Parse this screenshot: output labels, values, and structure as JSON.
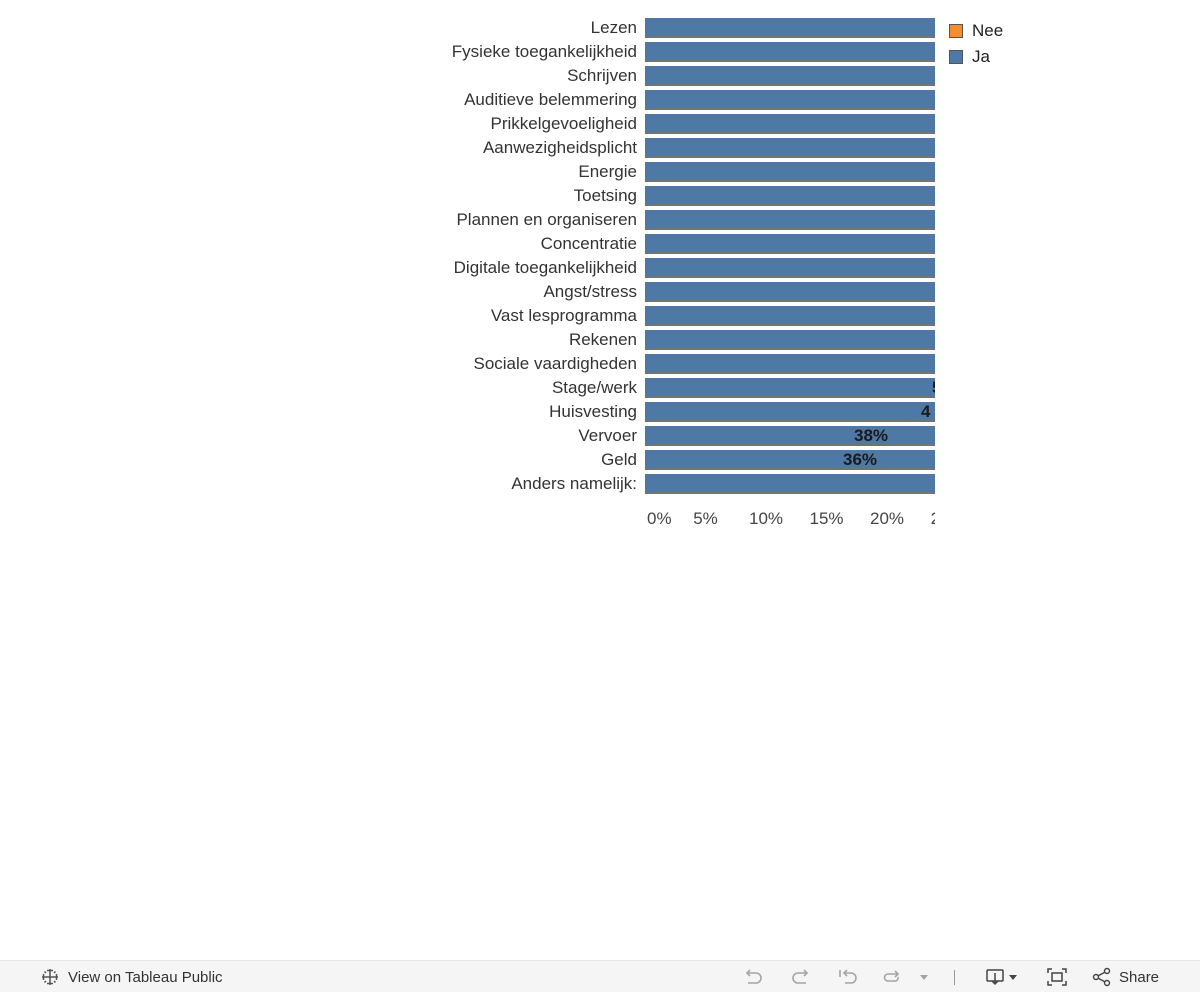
{
  "chart_data": {
    "type": "bar",
    "orientation": "horizontal",
    "stacked": true,
    "categories": [
      "Lezen",
      "Fysieke toegankelijkheid",
      "Schrijven",
      "Auditieve belemmering",
      "Prikkelgevoeligheid",
      "Aanwezigheidsplicht",
      "Energie",
      "Toetsing",
      "Plannen en organiseren",
      "Concentratie",
      "Digitale toegankelijkheid",
      "Angst/stress",
      "Vast lesprogramma",
      "Rekenen",
      "Sociale vaardigheden",
      "Stage/werk",
      "Huisvesting",
      "Vervoer",
      "Geld",
      "Anders namelijk:"
    ],
    "series": [
      {
        "name": "Ja",
        "color": "#4e79a7",
        "values": [
          null,
          null,
          null,
          null,
          null,
          null,
          null,
          null,
          null,
          null,
          null,
          null,
          null,
          null,
          null,
          null,
          null,
          null,
          null,
          null
        ]
      },
      {
        "name": "Nee",
        "color": "#f28e2b",
        "values": [
          null,
          null,
          null,
          null,
          null,
          null,
          null,
          null,
          null,
          null,
          null,
          null,
          null,
          null,
          null,
          null,
          null,
          null,
          null,
          null
        ]
      }
    ],
    "data_labels": [
      {
        "category": "Stage/werk",
        "text": "5"
      },
      {
        "category": "Huisvesting",
        "text": "4"
      },
      {
        "category": "Vervoer",
        "text": "38%"
      },
      {
        "category": "Geld",
        "text": "36%"
      }
    ],
    "x_ticks": [
      "0%",
      "5%",
      "10%",
      "15%",
      "20%",
      "2"
    ],
    "xlim": [
      0,
      24
    ],
    "legend": {
      "position": "top-right",
      "order": [
        "Nee",
        "Ja"
      ]
    },
    "grid": false
  },
  "legend_items": [
    {
      "label": "Nee",
      "color": "#f28e2b"
    },
    {
      "label": "Ja",
      "color": "#4e79a7"
    }
  ],
  "toolbar": {
    "view_label": "View on Tableau Public",
    "share_label": "Share"
  }
}
